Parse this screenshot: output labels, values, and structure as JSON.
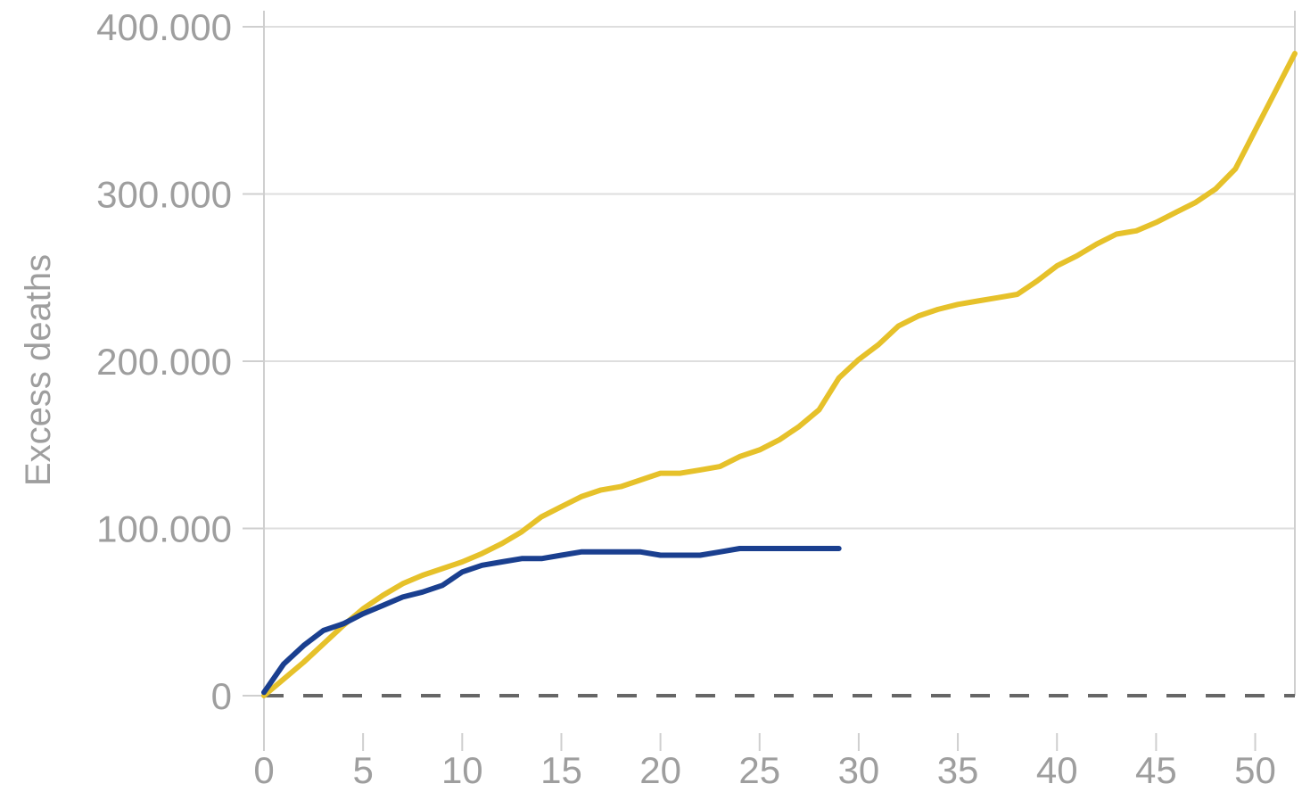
{
  "chart_data": {
    "type": "line",
    "title": "",
    "xlabel": "",
    "ylabel": "Excess deaths",
    "xlim": [
      0,
      52
    ],
    "ylim": [
      0,
      400000
    ],
    "x_ticks": [
      0,
      5,
      10,
      15,
      20,
      25,
      30,
      35,
      40,
      45,
      50
    ],
    "x_tick_labels": [
      "0",
      "5",
      "10",
      "15",
      "20",
      "25",
      "30",
      "35",
      "40",
      "45",
      "50"
    ],
    "y_ticks": [
      0,
      100000,
      200000,
      300000,
      400000
    ],
    "y_tick_labels": [
      "0",
      "100.000",
      "200.000",
      "300.000",
      "400.000"
    ],
    "grid": "horizontal",
    "reference_line": {
      "y": 0,
      "style": "dashed",
      "color": "#666666"
    },
    "series": [
      {
        "color": "#e6c12a",
        "x": [
          0,
          1,
          2,
          3,
          4,
          5,
          6,
          7,
          8,
          9,
          10,
          11,
          12,
          13,
          14,
          15,
          16,
          17,
          18,
          19,
          20,
          21,
          22,
          23,
          24,
          25,
          26,
          27,
          28,
          29,
          30,
          31,
          32,
          33,
          34,
          35,
          36,
          37,
          38,
          39,
          40,
          41,
          42,
          43,
          44,
          45,
          46,
          47,
          48,
          49,
          50,
          51,
          52
        ],
        "y": [
          0,
          10000,
          20000,
          31000,
          42000,
          52000,
          60000,
          67000,
          72000,
          76000,
          80000,
          85000,
          91000,
          98000,
          107000,
          113000,
          119000,
          123000,
          125000,
          129000,
          133000,
          133000,
          135000,
          137000,
          143000,
          147000,
          153000,
          161000,
          171000,
          190000,
          201000,
          210000,
          221000,
          227000,
          231000,
          234000,
          236000,
          238000,
          240000,
          248000,
          257000,
          263000,
          270000,
          276000,
          278000,
          283000,
          289000,
          295000,
          303000,
          315000,
          338000,
          361000,
          384000
        ]
      },
      {
        "color": "#1a3f8f",
        "x": [
          0,
          1,
          2,
          3,
          4,
          5,
          6,
          7,
          8,
          9,
          10,
          11,
          12,
          13,
          14,
          15,
          16,
          17,
          18,
          19,
          20,
          21,
          22,
          23,
          24,
          25,
          26,
          27,
          28,
          29
        ],
        "y": [
          2000,
          19000,
          30000,
          39000,
          43000,
          49000,
          54000,
          59000,
          62000,
          66000,
          74000,
          78000,
          80000,
          82000,
          82000,
          84000,
          86000,
          86000,
          86000,
          86000,
          84000,
          84000,
          84000,
          86000,
          88000,
          88000,
          88000,
          88000,
          88000,
          88000
        ]
      }
    ]
  }
}
